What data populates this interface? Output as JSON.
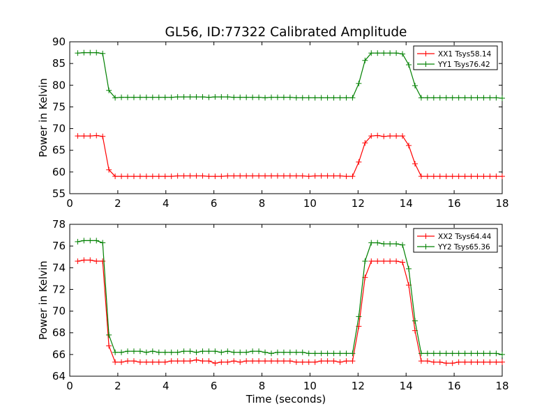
{
  "title": "GL56, ID:77322 Calibrated Amplitude",
  "chart_data": [
    {
      "type": "line",
      "title": "GL56, ID:77322 Calibrated Amplitude",
      "xlabel": "",
      "ylabel": "Power in Kelvin",
      "xlim": [
        0,
        18
      ],
      "ylim": [
        55,
        90
      ],
      "xticks": [
        "0",
        "2",
        "4",
        "6",
        "8",
        "10",
        "12",
        "14",
        "16",
        "18"
      ],
      "yticks": [
        "55",
        "60",
        "65",
        "70",
        "75",
        "80",
        "85",
        "90"
      ],
      "grid": false,
      "legend_position": "top-right",
      "x": [
        0.33,
        0.59,
        0.85,
        1.11,
        1.37,
        1.63,
        1.89,
        2.15,
        2.41,
        2.67,
        2.93,
        3.19,
        3.45,
        3.71,
        3.97,
        4.23,
        4.49,
        4.75,
        5.01,
        5.27,
        5.53,
        5.79,
        6.05,
        6.31,
        6.57,
        6.83,
        7.09,
        7.35,
        7.61,
        7.87,
        8.13,
        8.39,
        8.65,
        8.91,
        9.17,
        9.43,
        9.69,
        9.95,
        10.21,
        10.47,
        10.73,
        10.99,
        11.25,
        11.51,
        11.77,
        12.03,
        12.29,
        12.55,
        12.81,
        13.07,
        13.33,
        13.59,
        13.85,
        14.11,
        14.37,
        14.63,
        14.89,
        15.15,
        15.41,
        15.67,
        15.93,
        16.19,
        16.45,
        16.71,
        16.97,
        17.23,
        17.49,
        17.75,
        18.0
      ],
      "series": [
        {
          "name": "XX1 Tsys58.14",
          "color": "#ff0000",
          "values": [
            68.3,
            68.3,
            68.3,
            68.4,
            68.2,
            60.5,
            59.0,
            59.0,
            59.0,
            59.0,
            59.0,
            59.0,
            59.0,
            59.0,
            59.0,
            59.0,
            59.1,
            59.1,
            59.1,
            59.1,
            59.1,
            59.0,
            59.0,
            59.0,
            59.1,
            59.1,
            59.1,
            59.1,
            59.1,
            59.1,
            59.1,
            59.1,
            59.1,
            59.1,
            59.1,
            59.1,
            59.1,
            59.0,
            59.1,
            59.1,
            59.1,
            59.1,
            59.1,
            59.0,
            59.0,
            62.3,
            66.7,
            68.3,
            68.4,
            68.2,
            68.3,
            68.3,
            68.3,
            66.1,
            61.9,
            59.0,
            59.0,
            59.0,
            59.0,
            59.0,
            59.0,
            59.0,
            59.0,
            59.0,
            59.0,
            59.0,
            59.0,
            59.0,
            59.0
          ]
        },
        {
          "name": "YY1 Tsys76.42",
          "color": "#008000",
          "values": [
            87.4,
            87.5,
            87.5,
            87.5,
            87.3,
            78.8,
            77.1,
            77.2,
            77.2,
            77.2,
            77.2,
            77.2,
            77.2,
            77.2,
            77.2,
            77.2,
            77.3,
            77.3,
            77.3,
            77.3,
            77.3,
            77.2,
            77.3,
            77.3,
            77.3,
            77.2,
            77.2,
            77.2,
            77.2,
            77.2,
            77.1,
            77.2,
            77.2,
            77.2,
            77.2,
            77.1,
            77.1,
            77.1,
            77.1,
            77.1,
            77.1,
            77.1,
            77.1,
            77.1,
            77.1,
            80.4,
            85.7,
            87.4,
            87.4,
            87.4,
            87.4,
            87.4,
            87.2,
            84.7,
            79.9,
            77.1,
            77.1,
            77.1,
            77.1,
            77.1,
            77.1,
            77.1,
            77.1,
            77.1,
            77.1,
            77.1,
            77.1,
            77.1,
            77.0
          ]
        }
      ]
    },
    {
      "type": "line",
      "title": "",
      "xlabel": "Time (seconds)",
      "ylabel": "Power in Kelvin",
      "xlim": [
        0,
        18
      ],
      "ylim": [
        64,
        78
      ],
      "xticks": [
        "0",
        "2",
        "4",
        "6",
        "8",
        "10",
        "12",
        "14",
        "16",
        "18"
      ],
      "yticks": [
        "64",
        "66",
        "68",
        "70",
        "72",
        "74",
        "76",
        "78"
      ],
      "grid": false,
      "legend_position": "top-right",
      "x": [
        0.33,
        0.59,
        0.85,
        1.11,
        1.37,
        1.63,
        1.89,
        2.15,
        2.41,
        2.67,
        2.93,
        3.19,
        3.45,
        3.71,
        3.97,
        4.23,
        4.49,
        4.75,
        5.01,
        5.27,
        5.53,
        5.79,
        6.05,
        6.31,
        6.57,
        6.83,
        7.09,
        7.35,
        7.61,
        7.87,
        8.13,
        8.39,
        8.65,
        8.91,
        9.17,
        9.43,
        9.69,
        9.95,
        10.21,
        10.47,
        10.73,
        10.99,
        11.25,
        11.51,
        11.77,
        12.03,
        12.29,
        12.55,
        12.81,
        13.07,
        13.33,
        13.59,
        13.85,
        14.11,
        14.37,
        14.63,
        14.89,
        15.15,
        15.41,
        15.67,
        15.93,
        16.19,
        16.45,
        16.71,
        16.97,
        17.23,
        17.49,
        17.75,
        18.0
      ],
      "series": [
        {
          "name": "XX2 Tsys64.44",
          "color": "#ff0000",
          "values": [
            74.6,
            74.7,
            74.7,
            74.6,
            74.6,
            66.8,
            65.3,
            65.3,
            65.4,
            65.4,
            65.3,
            65.3,
            65.3,
            65.3,
            65.3,
            65.4,
            65.4,
            65.4,
            65.4,
            65.5,
            65.4,
            65.4,
            65.2,
            65.3,
            65.3,
            65.4,
            65.3,
            65.4,
            65.4,
            65.4,
            65.4,
            65.4,
            65.4,
            65.4,
            65.4,
            65.3,
            65.3,
            65.3,
            65.3,
            65.4,
            65.4,
            65.4,
            65.3,
            65.4,
            65.4,
            68.6,
            73.1,
            74.6,
            74.6,
            74.6,
            74.6,
            74.6,
            74.5,
            72.4,
            68.2,
            65.4,
            65.4,
            65.3,
            65.3,
            65.2,
            65.2,
            65.3,
            65.3,
            65.3,
            65.3,
            65.3,
            65.3,
            65.3,
            65.3
          ]
        },
        {
          "name": "YY2 Tsys65.36",
          "color": "#008000",
          "values": [
            76.4,
            76.5,
            76.5,
            76.5,
            76.3,
            67.8,
            66.2,
            66.2,
            66.3,
            66.3,
            66.3,
            66.2,
            66.3,
            66.2,
            66.2,
            66.2,
            66.2,
            66.3,
            66.3,
            66.2,
            66.3,
            66.3,
            66.3,
            66.2,
            66.3,
            66.2,
            66.2,
            66.2,
            66.3,
            66.3,
            66.2,
            66.1,
            66.2,
            66.2,
            66.2,
            66.2,
            66.2,
            66.1,
            66.1,
            66.1,
            66.1,
            66.1,
            66.1,
            66.1,
            66.1,
            69.5,
            74.6,
            76.3,
            76.3,
            76.2,
            76.2,
            76.2,
            76.1,
            73.9,
            69.1,
            66.1,
            66.1,
            66.1,
            66.1,
            66.1,
            66.1,
            66.1,
            66.1,
            66.1,
            66.1,
            66.1,
            66.1,
            66.1,
            66.0
          ]
        }
      ]
    }
  ]
}
